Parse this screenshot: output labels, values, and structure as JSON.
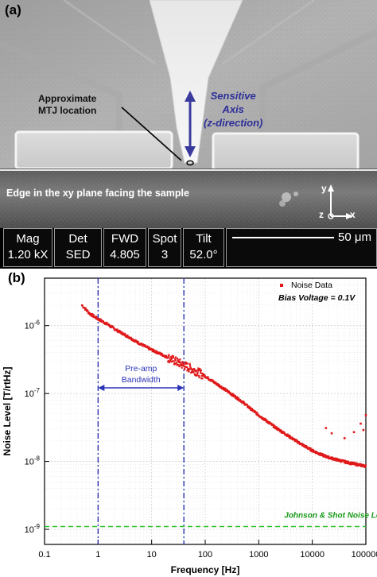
{
  "panel_a": {
    "letter": "(a)",
    "mtj_label_line1": "Approximate",
    "mtj_label_line2": "MTJ location",
    "axis_line1": "Sensitive",
    "axis_line2": "Axis",
    "axis_line3": "(z-direction)",
    "edge_label": "Edge in the xy plane facing the sample",
    "coord_y": "y",
    "coord_x": "x",
    "coord_z": "z",
    "info_bar": {
      "cells": [
        {
          "label": "Mag",
          "value": "1.20 kX"
        },
        {
          "label": "Det",
          "value": "SED"
        },
        {
          "label": "FWD",
          "value": "4.805"
        },
        {
          "label": "Spot",
          "value": "3"
        },
        {
          "label": "Tilt",
          "value": "52.0°"
        }
      ],
      "scale_label": "50 μm"
    },
    "colors": {
      "axis_arrow": "#3a3a9e",
      "sensitive_axis_text": "#2d2f9a"
    }
  },
  "panel_b": {
    "letter": "(b)",
    "chart_data": {
      "type": "scatter",
      "xlabel": "Frequency [Hz]",
      "ylabel": "Noise Level [T/rtHz]",
      "x_scale": "log",
      "y_scale": "log",
      "xlim": [
        0.1,
        100000
      ],
      "ylim": [
        6e-10,
        5e-06
      ],
      "x_ticks": [
        0.1,
        1,
        10,
        100,
        1000,
        10000,
        100000
      ],
      "x_tick_labels": [
        "0.1",
        "1",
        "10",
        "100",
        "1000",
        "10000",
        "100000"
      ],
      "y_ticks": [
        1e-09,
        1e-08,
        1e-07,
        1e-06
      ],
      "y_tick_base": "10",
      "y_tick_exps": [
        "-9",
        "-8",
        "-7",
        "-6"
      ],
      "grid": true,
      "legend": {
        "position": "top-right",
        "entries": [
          "Noise Data"
        ]
      },
      "annotations": {
        "bias_voltage": "Bias Voltage = 0.1V",
        "preamp_line1": "Pre-amp",
        "preamp_line2": "Bandwidth",
        "floor_label": "Johnson & Shot Noise Level"
      },
      "preamp_bandwidth_hz": [
        1,
        40
      ],
      "noise_floor": 1.1e-09,
      "series": [
        {
          "name": "Noise Data",
          "color": "#e0191a",
          "points": [
            [
              0.5,
              2e-06
            ],
            [
              0.7,
              1.5e-06
            ],
            [
              1.0,
              1.25e-06
            ],
            [
              1.5,
              1.05e-06
            ],
            [
              2.0,
              9e-07
            ],
            [
              3.0,
              7.5e-07
            ],
            [
              4.0,
              6.6e-07
            ],
            [
              5.0,
              5.9e-07
            ],
            [
              7.0,
              5.1e-07
            ],
            [
              10.0,
              4.4e-07
            ],
            [
              15.0,
              3.8e-07
            ],
            [
              20.0,
              3.4e-07
            ],
            [
              30.0,
              2.9e-07
            ],
            [
              40.0,
              2.6e-07
            ],
            [
              50.0,
              2.4e-07
            ],
            [
              70.0,
              2.1e-07
            ],
            [
              100.0,
              1.8e-07
            ],
            [
              150.0,
              1.45e-07
            ],
            [
              200.0,
              1.25e-07
            ],
            [
              300.0,
              1e-07
            ],
            [
              500.0,
              7.5e-08
            ],
            [
              700.0,
              6e-08
            ],
            [
              1000.0,
              4.8e-08
            ],
            [
              1500.0,
              3.8e-08
            ],
            [
              2000.0,
              3.2e-08
            ],
            [
              3000.0,
              2.6e-08
            ],
            [
              5000.0,
              2e-08
            ],
            [
              7000.0,
              1.7e-08
            ],
            [
              10000.0,
              1.45e-08
            ],
            [
              15000.0,
              1.25e-08
            ],
            [
              20000.0,
              1.15e-08
            ],
            [
              30000.0,
              1.05e-08
            ],
            [
              50000.0,
              9.5e-09
            ],
            [
              70000.0,
              9e-09
            ],
            [
              100000.0,
              8.5e-09
            ]
          ],
          "outliers": [
            [
              18000,
              3.1e-08
            ],
            [
              23000,
              2.6e-08
            ],
            [
              40000,
              2.2e-08
            ],
            [
              60000,
              2.7e-08
            ],
            [
              80000,
              3.6e-08
            ],
            [
              90000,
              2.9e-08
            ],
            [
              100000,
              4.8e-08
            ]
          ]
        }
      ],
      "colors": {
        "preamp_lines": "#2b33b8",
        "floor_line": "#2ac02a",
        "floor_text": "#1a9a1a"
      }
    }
  }
}
